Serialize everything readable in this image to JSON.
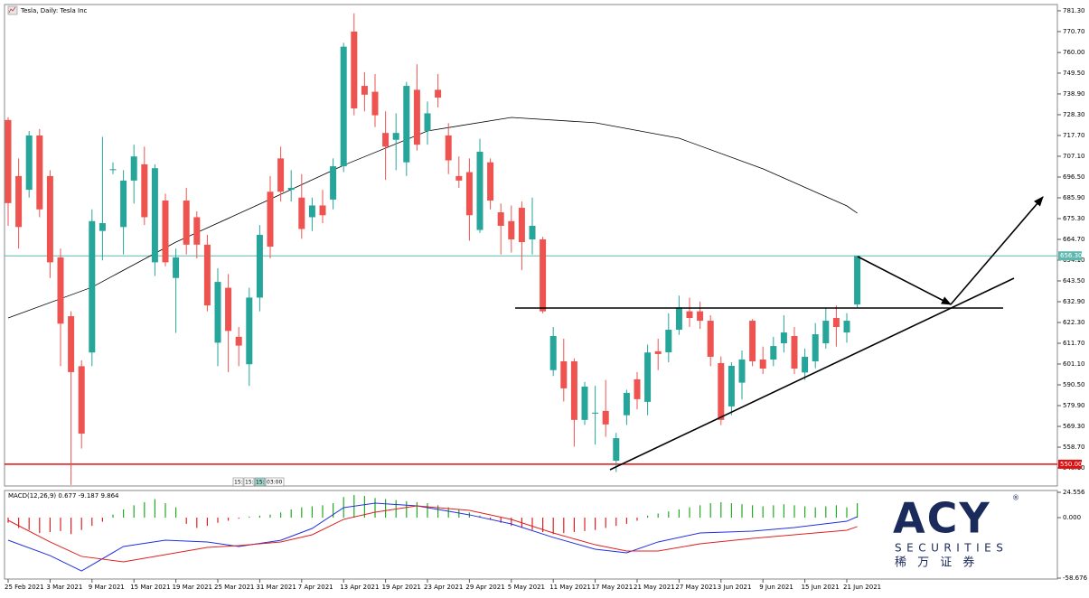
{
  "chart_data": [
    {
      "type": "candlestick",
      "title": "Tesla, Daily:  Tesla Inc",
      "categories": [
        "25 Feb 2021",
        null,
        null,
        null,
        "3 Mar 2021",
        null,
        null,
        null,
        "9 Mar 2021",
        null,
        null,
        null,
        "15 Mar 2021",
        null,
        null,
        null,
        "19 Mar 2021",
        null,
        null,
        null,
        "25 Mar 2021",
        null,
        null,
        null,
        "31 Mar 2021",
        null,
        null,
        null,
        "7 Apr 2021",
        null,
        null,
        null,
        "13 Apr 2021",
        null,
        null,
        null,
        "19 Apr 2021",
        null,
        null,
        null,
        "23 Apr 2021",
        null,
        null,
        null,
        "29 Apr 2021",
        null,
        null,
        null,
        "5 May 2021",
        null,
        null,
        null,
        "11 May 2021",
        null,
        null,
        null,
        "17 May 2021",
        null,
        null,
        null,
        "21 May 2021",
        null,
        null,
        null,
        "27 May 2021",
        null,
        null,
        null,
        "3 Jun 2021",
        null,
        null,
        null,
        "9 Jun 2021",
        null,
        null,
        null,
        "15 Jun 2021",
        null,
        null,
        null,
        "21 Jun 2021",
        null
      ],
      "open": [
        725.6,
        697,
        690,
        717.7,
        697,
        655.5,
        625.5,
        600,
        607,
        669,
        700,
        671,
        694.7,
        703,
        653,
        684.5,
        645,
        684.5,
        676,
        662,
        612,
        640,
        615,
        601,
        635,
        689,
        706,
        690,
        686,
        676,
        682,
        685,
        702,
        770.7,
        743,
        740,
        719,
        715.5,
        704,
        741,
        720,
        741,
        717.7,
        697,
        699,
        669.5,
        704,
        678.5,
        674,
        680.8,
        664.7,
        664.7,
        598,
        602.5,
        602.5,
        572.6,
        575.8,
        577.2,
        551.8,
        575,
        593.3,
        581.8,
        607.6,
        607.1,
        618.6,
        628,
        628,
        623.2,
        601.6,
        579.5,
        591.6,
        623.2,
        603.4,
        603.4,
        611.7,
        615.4,
        596.8,
        602.5,
        611.7,
        624.6,
        617.2,
        631.5
      ],
      "high": [
        727,
        706,
        720,
        721,
        700,
        660,
        628,
        603,
        680,
        717,
        704,
        700,
        713,
        712,
        703,
        688,
        660,
        691,
        679,
        667,
        650,
        647,
        620,
        640,
        672,
        697,
        712,
        700,
        698,
        686,
        690,
        706,
        765,
        780,
        750,
        749,
        730,
        729,
        745,
        754,
        735,
        749,
        724,
        707,
        706,
        716,
        706,
        683,
        682,
        684,
        686,
        666,
        620,
        614,
        604,
        592,
        590,
        593,
        566,
        588,
        597,
        611,
        614,
        627,
        636,
        635,
        633,
        626,
        605,
        602,
        608,
        624,
        610,
        615,
        626,
        620,
        609,
        622,
        630,
        631,
        627,
        656.3
      ],
      "low": [
        671.6,
        660,
        686,
        676,
        645,
        600,
        539.4,
        558,
        600,
        654,
        698,
        657,
        683,
        672,
        646,
        651,
        617,
        657,
        655,
        628,
        600,
        597,
        600,
        590,
        628,
        655,
        684,
        684,
        665,
        669,
        673,
        680,
        699,
        728,
        730,
        722,
        695,
        700,
        697,
        710,
        713,
        732,
        698,
        691,
        664,
        668,
        680,
        657,
        658,
        649,
        657,
        627,
        595,
        582,
        559,
        570,
        560,
        564,
        546,
        570,
        578,
        575,
        598,
        602,
        616,
        620,
        619,
        600,
        570,
        575,
        583,
        600,
        596,
        600,
        607,
        596,
        593,
        599,
        609,
        610,
        612,
        630
      ],
      "close": [
        683.2,
        671,
        717.7,
        680,
        653,
        621.7,
        597,
        565.6,
        674,
        673,
        700.5,
        694.7,
        707,
        676,
        701,
        653,
        655.5,
        662,
        662,
        631,
        643,
        618,
        610.5,
        635,
        667,
        661,
        689,
        691,
        670,
        682,
        677,
        702,
        763,
        731.5,
        738.5,
        728,
        712,
        719,
        743,
        713,
        729,
        737,
        705,
        694.7,
        677,
        709.4,
        684.5,
        671.6,
        664.7,
        663.3,
        671.6,
        628,
        615.4,
        588.7,
        572.6,
        589.6,
        576.3,
        570.3,
        563.3,
        586.4,
        583.2,
        607,
        606.2,
        618.6,
        630,
        624.6,
        623.2,
        604.8,
        572.6,
        600.2,
        603.4,
        602.5,
        598.8,
        610.3,
        617.2,
        598.8,
        604.8,
        616.3,
        623.2,
        620,
        623.2,
        656.3
      ],
      "up_color": "#26a69a",
      "down_color": "#ef5350",
      "moving_average": {
        "color": "#000000",
        "x": [
          0,
          8,
          16,
          24,
          32,
          40,
          48,
          56,
          64,
          72,
          80,
          81
        ],
        "values": [
          624.6,
          640.3,
          663.3,
          682.7,
          702.5,
          720.0,
          726.9,
          724.2,
          716.3,
          700.7,
          681.8,
          678.1
        ]
      },
      "ylim": [
        538.9,
        784.5
      ],
      "yticks": [
        {
          "value": 781.3,
          "label": "781.30"
        },
        {
          "value": 770.7,
          "label": "770.70"
        },
        {
          "value": 760,
          "label": "760.00"
        },
        {
          "value": 749.5,
          "label": "749.50"
        },
        {
          "value": 738.9,
          "label": "738.90"
        },
        {
          "value": 728.3,
          "label": "728.30"
        },
        {
          "value": 717.7,
          "label": "717.70"
        },
        {
          "value": 707.1,
          "label": "707.10"
        },
        {
          "value": 696.5,
          "label": "696.50"
        },
        {
          "value": 685.9,
          "label": "685.90"
        },
        {
          "value": 675.3,
          "label": "675.30"
        },
        {
          "value": 664.7,
          "label": "664.70"
        },
        {
          "value": 654.1,
          "label": "654.10"
        },
        {
          "value": 643.5,
          "label": "643.50"
        },
        {
          "value": 632.9,
          "label": "632.90"
        },
        {
          "value": 622.3,
          "label": "622.30"
        },
        {
          "value": 611.7,
          "label": "611.70"
        },
        {
          "value": 601.1,
          "label": "601.10"
        },
        {
          "value": 590.5,
          "label": "590.50"
        },
        {
          "value": 579.9,
          "label": "579.90"
        },
        {
          "value": 569.3,
          "label": "569.30"
        },
        {
          "value": 558.7,
          "label": "558.70"
        },
        {
          "value": 548.1,
          "label": "548.10"
        }
      ],
      "price_lines": [
        {
          "value": 656.3,
          "label": "656.30",
          "color": "#5fb8b0"
        },
        {
          "value": 550,
          "label": "550.00",
          "color": "#e01010"
        }
      ],
      "timer": [
        "15:",
        "15:",
        "15:",
        "03:00"
      ]
    },
    {
      "type": "macd",
      "label": "MACD(12,26,9) 0.677 -9.187 9.864",
      "histogram": {
        "up_color": "#22aa22",
        "down_color": "#e02020",
        "values": [
          -5,
          -10,
          -12,
          -15,
          -14,
          -13,
          -16,
          -12,
          -8,
          -4,
          3,
          8,
          12,
          15,
          18,
          14,
          10,
          -6,
          -10,
          -8,
          -5,
          -3,
          -1,
          1,
          2,
          3,
          5,
          8,
          10,
          11,
          12,
          14,
          20,
          22,
          21,
          19,
          18,
          17,
          16,
          15,
          14,
          12,
          10,
          8,
          5,
          2,
          -2,
          -5,
          -8,
          -10,
          -12,
          -14,
          -16,
          -15,
          -14,
          -13,
          -12,
          -10,
          -8,
          -6,
          -3,
          2,
          4,
          6,
          8,
          10,
          12,
          14,
          15,
          14,
          13,
          12,
          11,
          12,
          13,
          12,
          11,
          10,
          11,
          12,
          10,
          14
        ]
      },
      "series": [
        {
          "color": "#2030e0",
          "x": [
            0,
            4,
            7,
            11,
            15,
            19,
            22,
            26,
            29,
            32,
            35,
            39,
            44,
            48,
            52,
            56,
            59,
            62,
            66,
            71,
            75,
            80,
            81
          ],
          "values": [
            -21.9,
            -36.8,
            -51.7,
            -28,
            -21.9,
            -23.6,
            -28,
            -22,
            -10.5,
            9.7,
            14,
            11.4,
            2.7,
            -6.1,
            -19.2,
            -30.6,
            -34.1,
            -23.6,
            -14.9,
            -13.1,
            -9.6,
            -3.5,
            0.9
          ]
        },
        {
          "color": "#e02020",
          "x": [
            0,
            4,
            7,
            11,
            15,
            19,
            22,
            26,
            29,
            32,
            35,
            39,
            44,
            48,
            52,
            56,
            59,
            62,
            66,
            71,
            75,
            80,
            81
          ],
          "values": [
            -2.6,
            -23.6,
            -37.6,
            -42.9,
            -35.9,
            -28.9,
            -27.1,
            -23.6,
            -16.6,
            -1.7,
            5.3,
            11.4,
            7.0,
            -1.7,
            -14.9,
            -26.3,
            -32.4,
            -32.4,
            -25.4,
            -20.1,
            -16.6,
            -12.2,
            -8.7
          ]
        }
      ],
      "ylim": [
        -58.676,
        24.556
      ],
      "yticks": [
        {
          "value": 24.556,
          "label": "24.556"
        },
        {
          "value": 0,
          "label": "0.000"
        },
        {
          "value": -58.676,
          "label": "-58.676"
        }
      ]
    }
  ],
  "logo": {
    "brand": "ACY",
    "mark": "®",
    "subtitle": "SECURITIES",
    "chinese": "稀 万 证 券"
  }
}
